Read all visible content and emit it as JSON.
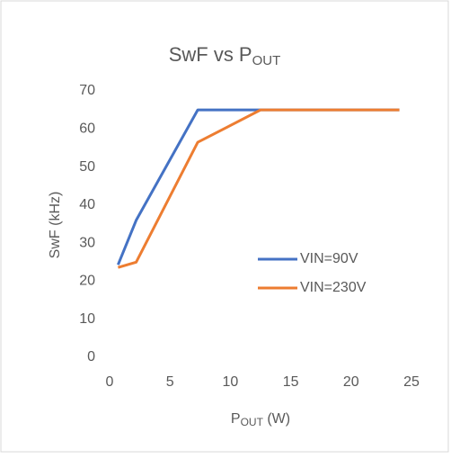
{
  "chart_data": {
    "type": "line",
    "title": [
      "SwF vs P",
      "OUT"
    ],
    "xlabel": [
      "P",
      "OUT",
      " (W)"
    ],
    "ylabel": "SwF (kHz)",
    "x": [
      0.7,
      2.2,
      7.3,
      12.5,
      24
    ],
    "series": [
      {
        "name": "VIN=90V",
        "color": "#4472c4",
        "values": [
          24.3,
          36,
          65,
          65,
          65
        ]
      },
      {
        "name": "VIN=230V",
        "color": "#ed7d31",
        "values": [
          23.6,
          25,
          56.5,
          65,
          65
        ]
      }
    ],
    "xlim": [
      0,
      25
    ],
    "xticks": [
      0,
      5,
      10,
      15,
      20,
      25
    ],
    "ylim": [
      0,
      70
    ],
    "yticks": [
      0,
      10,
      20,
      30,
      40,
      50,
      60,
      70
    ],
    "grid": false,
    "legend": "right"
  }
}
